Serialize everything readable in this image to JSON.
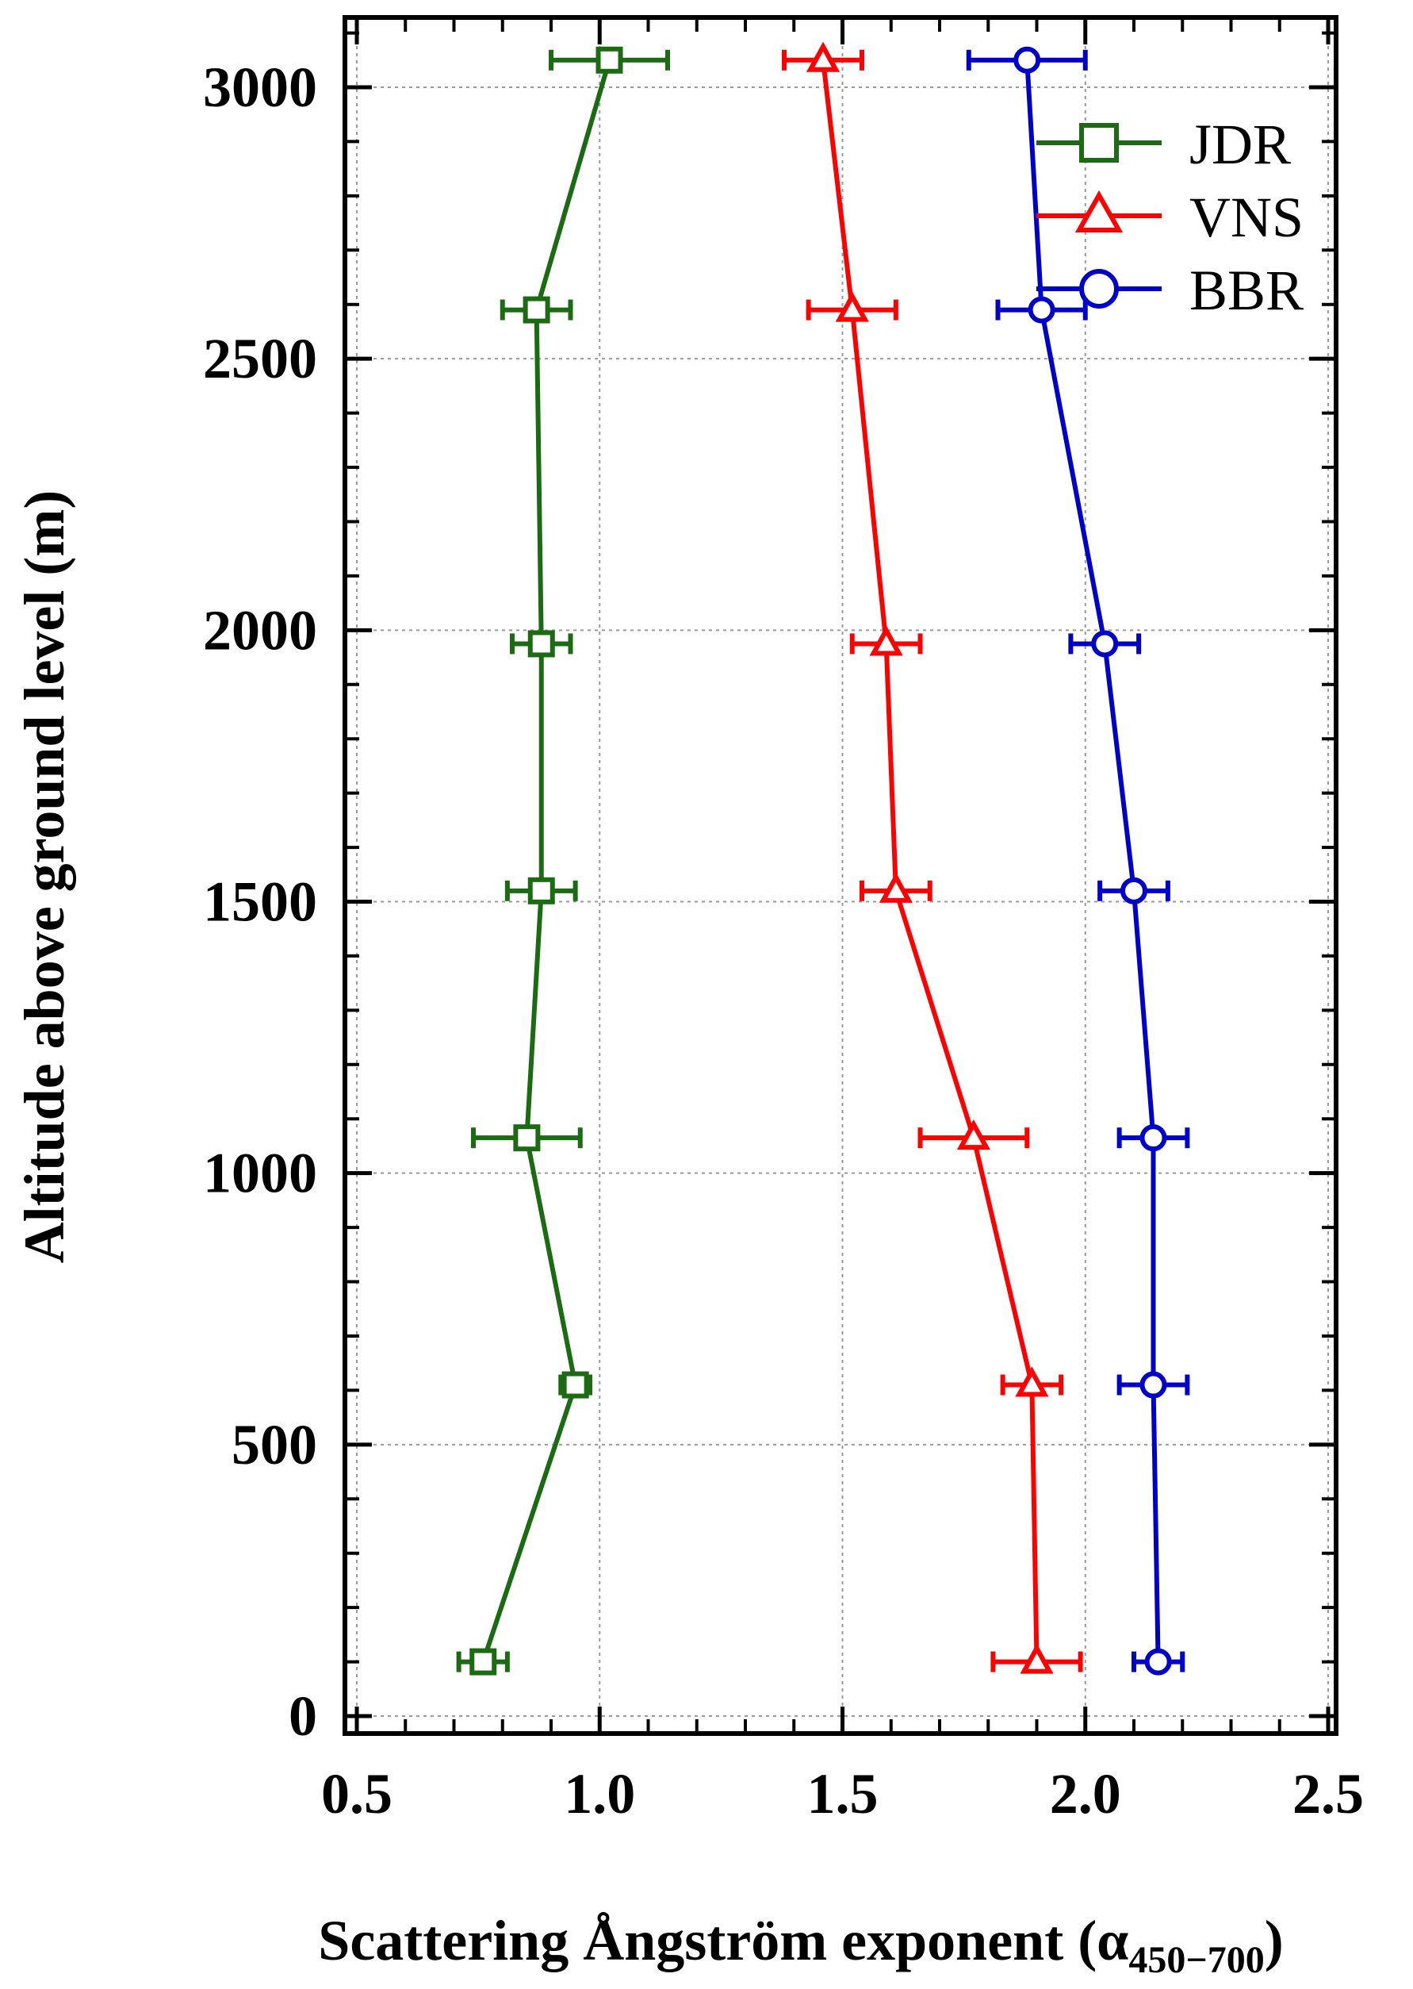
{
  "chart_data": {
    "type": "line",
    "xlabel": "Scattering Ångström exponent (α",
    "xlabel_subscript": "450−700",
    "xlabel_suffix": ")",
    "ylabel": "Altitude above ground level (m)",
    "xlim": [
      0.5,
      2.5
    ],
    "ylim": [
      -20,
      3150
    ],
    "xticks": [
      {
        "value": 0.5,
        "label": "0.5"
      },
      {
        "value": 1.0,
        "label": "1.0"
      },
      {
        "value": 1.5,
        "label": "1.5"
      },
      {
        "value": 2.0,
        "label": "2.0"
      },
      {
        "value": 2.5,
        "label": "2.5"
      }
    ],
    "yticks": [
      {
        "value": 0,
        "label": "0"
      },
      {
        "value": 500,
        "label": "500"
      },
      {
        "value": 1000,
        "label": "1000"
      },
      {
        "value": 1500,
        "label": "1500"
      },
      {
        "value": 2000,
        "label": "2000"
      },
      {
        "value": 2500,
        "label": "2500"
      },
      {
        "value": 3000,
        "label": "3000"
      }
    ],
    "grid": true,
    "legend_position": "top-right",
    "series": [
      {
        "name": "JDR",
        "color": "#1a6b12",
        "marker": "square",
        "points": [
          {
            "x": 0.76,
            "y": 100,
            "xerr": 0.05
          },
          {
            "x": 0.95,
            "y": 610,
            "xerr": 0.03
          },
          {
            "x": 0.85,
            "y": 1065,
            "xerr": 0.11
          },
          {
            "x": 0.88,
            "y": 1520,
            "xerr": 0.07
          },
          {
            "x": 0.88,
            "y": 1975,
            "xerr": 0.06
          },
          {
            "x": 0.87,
            "y": 2590,
            "xerr": 0.07
          },
          {
            "x": 1.02,
            "y": 3050,
            "xerr": 0.12
          }
        ]
      },
      {
        "name": "VNS",
        "color": "#ff0000",
        "marker": "triangle",
        "points": [
          {
            "x": 1.9,
            "y": 100,
            "xerr": 0.09
          },
          {
            "x": 1.89,
            "y": 610,
            "xerr": 0.06
          },
          {
            "x": 1.77,
            "y": 1065,
            "xerr": 0.11
          },
          {
            "x": 1.61,
            "y": 1520,
            "xerr": 0.07
          },
          {
            "x": 1.59,
            "y": 1975,
            "xerr": 0.07
          },
          {
            "x": 1.52,
            "y": 2590,
            "xerr": 0.09
          },
          {
            "x": 1.46,
            "y": 3050,
            "xerr": 0.08
          }
        ]
      },
      {
        "name": "BBR",
        "color": "#0000cc",
        "marker": "circle",
        "points": [
          {
            "x": 2.15,
            "y": 100,
            "xerr": 0.05
          },
          {
            "x": 2.14,
            "y": 610,
            "xerr": 0.07
          },
          {
            "x": 2.14,
            "y": 1065,
            "xerr": 0.07
          },
          {
            "x": 2.1,
            "y": 1520,
            "xerr": 0.07
          },
          {
            "x": 2.04,
            "y": 1975,
            "xerr": 0.07
          },
          {
            "x": 1.91,
            "y": 2590,
            "xerr": 0.09
          },
          {
            "x": 1.88,
            "y": 3050,
            "xerr": 0.12
          }
        ]
      }
    ]
  }
}
